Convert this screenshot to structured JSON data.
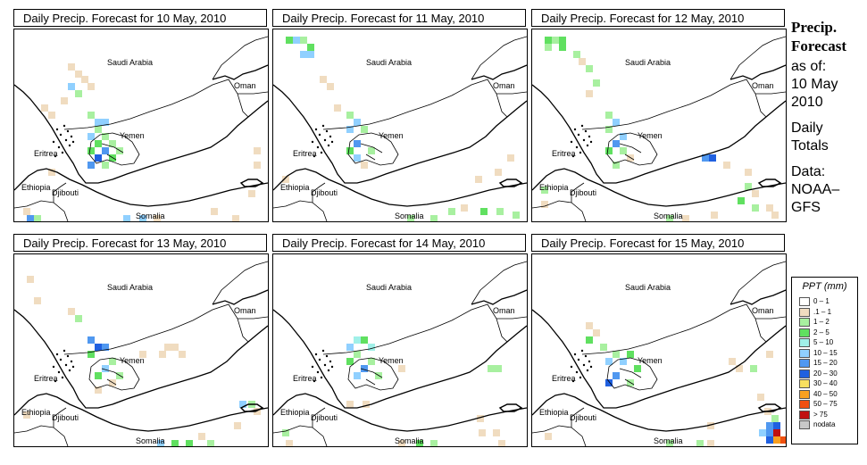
{
  "panels": [
    {
      "title": "Daily Precip. Forecast for  10 May, 2010"
    },
    {
      "title": "Daily Precip. Forecast for  11 May, 2010"
    },
    {
      "title": "Daily Precip. Forecast for  12 May, 2010"
    },
    {
      "title": "Daily Precip. Forecast for  13 May, 2010"
    },
    {
      "title": "Daily Precip. Forecast for  14 May, 2010"
    },
    {
      "title": "Daily Precip. Forecast for  15 May, 2010"
    }
  ],
  "map_labels": {
    "saudi": "Saudi Arabia",
    "oman": "Oman",
    "yemen": "Yemen",
    "eritrea": "Eritrea",
    "ethiopia": "Ethiopia",
    "djibouti": "Djibouti",
    "somalia": "Somalia"
  },
  "sidebar": {
    "heading1": "Precip.",
    "heading2": "Forecast",
    "asof": "as of:",
    "date1": "10 May",
    "date2": "2010",
    "totals1": "Daily",
    "totals2": "Totals",
    "data1": "Data:",
    "data2": "NOAA–",
    "data3": "GFS"
  },
  "legend": {
    "title": "PPT (mm)",
    "items": [
      {
        "label": "0 – 1",
        "color": "#ffffff"
      },
      {
        "label": ".1 – 1",
        "color": "#f0dcc0"
      },
      {
        "label": "1 – 2",
        "color": "#a8f0a0"
      },
      {
        "label": "2 – 5",
        "color": "#60e060"
      },
      {
        "label": "5 – 10",
        "color": "#a0f0e8"
      },
      {
        "label": "10 – 15",
        "color": "#90d0ff"
      },
      {
        "label": "15 – 20",
        "color": "#5098f0"
      },
      {
        "label": "20 – 30",
        "color": "#2060e0"
      },
      {
        "label": "30 – 40",
        "color": "#f8e060"
      },
      {
        "label": "40 – 50",
        "color": "#f8a020"
      },
      {
        "label": "50 – 75",
        "color": "#f05010"
      },
      {
        "label": "> 75",
        "color": "#c01010"
      },
      {
        "label": "nodata",
        "color": "#c8c8c8"
      }
    ]
  },
  "precip_cells": [
    [
      [
        60,
        38,
        1
      ],
      [
        68,
        46,
        1
      ],
      [
        75,
        52,
        1
      ],
      [
        60,
        60,
        5
      ],
      [
        82,
        60,
        1
      ],
      [
        68,
        68,
        2
      ],
      [
        52,
        76,
        1
      ],
      [
        30,
        84,
        1
      ],
      [
        38,
        92,
        1
      ],
      [
        82,
        92,
        2
      ],
      [
        90,
        100,
        5
      ],
      [
        98,
        100,
        5
      ],
      [
        90,
        108,
        2
      ],
      [
        82,
        116,
        5
      ],
      [
        98,
        116,
        2
      ],
      [
        90,
        124,
        3
      ],
      [
        106,
        124,
        2
      ],
      [
        82,
        132,
        3
      ],
      [
        98,
        132,
        6
      ],
      [
        114,
        132,
        2
      ],
      [
        90,
        140,
        7
      ],
      [
        106,
        140,
        3
      ],
      [
        82,
        148,
        6
      ],
      [
        98,
        148,
        2
      ],
      [
        38,
        156,
        1
      ],
      [
        268,
        132,
        1
      ],
      [
        268,
        148,
        1
      ],
      [
        262,
        180,
        1
      ],
      [
        220,
        200,
        1
      ],
      [
        10,
        200,
        1
      ],
      [
        14,
        208,
        6
      ],
      [
        22,
        208,
        2
      ],
      [
        122,
        208,
        5
      ],
      [
        140,
        208,
        5
      ],
      [
        156,
        208,
        1
      ],
      [
        244,
        208,
        1
      ]
    ],
    [
      [
        14,
        8,
        3
      ],
      [
        22,
        8,
        5
      ],
      [
        30,
        8,
        2
      ],
      [
        38,
        16,
        3
      ],
      [
        30,
        24,
        5
      ],
      [
        38,
        24,
        5
      ],
      [
        52,
        52,
        1
      ],
      [
        60,
        60,
        1
      ],
      [
        68,
        84,
        1
      ],
      [
        82,
        92,
        2
      ],
      [
        90,
        100,
        5
      ],
      [
        82,
        108,
        5
      ],
      [
        98,
        108,
        2
      ],
      [
        90,
        124,
        6
      ],
      [
        82,
        132,
        3
      ],
      [
        106,
        132,
        2
      ],
      [
        90,
        140,
        5
      ],
      [
        98,
        148,
        1
      ],
      [
        10,
        164,
        1
      ],
      [
        248,
        156,
        1
      ],
      [
        262,
        140,
        1
      ],
      [
        226,
        164,
        1
      ],
      [
        210,
        196,
        1
      ],
      [
        232,
        200,
        3
      ],
      [
        250,
        200,
        2
      ],
      [
        268,
        204,
        2
      ],
      [
        150,
        208,
        2
      ],
      [
        176,
        208,
        2
      ],
      [
        196,
        200,
        2
      ]
    ],
    [
      [
        14,
        8,
        3
      ],
      [
        22,
        8,
        2
      ],
      [
        30,
        8,
        3
      ],
      [
        14,
        16,
        2
      ],
      [
        30,
        16,
        3
      ],
      [
        46,
        24,
        2
      ],
      [
        52,
        32,
        1
      ],
      [
        60,
        40,
        2
      ],
      [
        68,
        56,
        2
      ],
      [
        60,
        68,
        1
      ],
      [
        82,
        92,
        2
      ],
      [
        90,
        100,
        5
      ],
      [
        82,
        108,
        2
      ],
      [
        98,
        116,
        5
      ],
      [
        90,
        124,
        6
      ],
      [
        82,
        132,
        3
      ],
      [
        98,
        132,
        2
      ],
      [
        106,
        140,
        1
      ],
      [
        90,
        148,
        2
      ],
      [
        10,
        176,
        2
      ],
      [
        10,
        192,
        1
      ],
      [
        190,
        140,
        6
      ],
      [
        198,
        140,
        7
      ],
      [
        214,
        148,
        1
      ],
      [
        238,
        156,
        1
      ],
      [
        238,
        172,
        2
      ],
      [
        246,
        180,
        1
      ],
      [
        230,
        188,
        3
      ],
      [
        246,
        196,
        2
      ],
      [
        262,
        196,
        1
      ],
      [
        268,
        204,
        1
      ],
      [
        200,
        204,
        1
      ],
      [
        150,
        208,
        2
      ],
      [
        168,
        208,
        1
      ]
    ],
    [
      [
        14,
        24,
        1
      ],
      [
        22,
        48,
        1
      ],
      [
        60,
        60,
        1
      ],
      [
        68,
        68,
        2
      ],
      [
        82,
        92,
        6
      ],
      [
        90,
        100,
        7
      ],
      [
        98,
        100,
        6
      ],
      [
        82,
        108,
        3
      ],
      [
        106,
        116,
        2
      ],
      [
        98,
        124,
        5
      ],
      [
        90,
        132,
        3
      ],
      [
        114,
        132,
        2
      ],
      [
        106,
        140,
        1
      ],
      [
        90,
        148,
        1
      ],
      [
        140,
        108,
        1
      ],
      [
        162,
        108,
        1
      ],
      [
        168,
        100,
        1
      ],
      [
        176,
        100,
        1
      ],
      [
        184,
        108,
        1
      ],
      [
        252,
        164,
        5
      ],
      [
        262,
        164,
        2
      ],
      [
        268,
        172,
        1
      ],
      [
        246,
        188,
        1
      ],
      [
        206,
        200,
        1
      ],
      [
        216,
        208,
        2
      ],
      [
        160,
        208,
        5
      ],
      [
        176,
        208,
        3
      ],
      [
        192,
        208,
        3
      ],
      [
        10,
        176,
        1
      ]
    ],
    [
      [
        90,
        92,
        4
      ],
      [
        98,
        92,
        3
      ],
      [
        82,
        100,
        5
      ],
      [
        106,
        100,
        4
      ],
      [
        90,
        108,
        2
      ],
      [
        82,
        116,
        3
      ],
      [
        106,
        116,
        2
      ],
      [
        98,
        124,
        6
      ],
      [
        90,
        132,
        5
      ],
      [
        114,
        132,
        2
      ],
      [
        240,
        124,
        2
      ],
      [
        248,
        124,
        2
      ],
      [
        140,
        124,
        1
      ],
      [
        82,
        164,
        1
      ],
      [
        100,
        164,
        1
      ],
      [
        228,
        180,
        1
      ],
      [
        230,
        196,
        1
      ],
      [
        246,
        196,
        1
      ],
      [
        10,
        196,
        2
      ],
      [
        14,
        208,
        1
      ],
      [
        140,
        208,
        1
      ],
      [
        160,
        208,
        3
      ],
      [
        176,
        208,
        2
      ],
      [
        252,
        208,
        1
      ]
    ],
    [
      [
        60,
        76,
        1
      ],
      [
        68,
        84,
        1
      ],
      [
        60,
        92,
        3
      ],
      [
        76,
        100,
        2
      ],
      [
        90,
        108,
        2
      ],
      [
        106,
        108,
        3
      ],
      [
        82,
        116,
        5
      ],
      [
        98,
        116,
        5
      ],
      [
        114,
        124,
        3
      ],
      [
        90,
        132,
        6
      ],
      [
        82,
        140,
        7
      ],
      [
        106,
        140,
        2
      ],
      [
        220,
        116,
        1
      ],
      [
        228,
        124,
        1
      ],
      [
        244,
        124,
        2
      ],
      [
        262,
        108,
        1
      ],
      [
        196,
        188,
        1
      ],
      [
        252,
        156,
        1
      ],
      [
        260,
        172,
        1
      ],
      [
        268,
        180,
        2
      ],
      [
        262,
        188,
        6
      ],
      [
        270,
        188,
        7
      ],
      [
        254,
        196,
        5
      ],
      [
        262,
        196,
        6
      ],
      [
        270,
        196,
        11
      ],
      [
        262,
        204,
        7
      ],
      [
        270,
        204,
        9
      ],
      [
        278,
        204,
        10
      ],
      [
        14,
        200,
        1
      ],
      [
        150,
        208,
        2
      ],
      [
        184,
        208,
        2
      ],
      [
        196,
        208,
        1
      ]
    ]
  ],
  "grid_colors": [
    "#ffffff",
    "#f0dcc0",
    "#a8f0a0",
    "#60e060",
    "#a0f0e8",
    "#90d0ff",
    "#5098f0",
    "#2060e0",
    "#f8e060",
    "#f8a020",
    "#f05010",
    "#c01010",
    "#c8c8c8"
  ]
}
